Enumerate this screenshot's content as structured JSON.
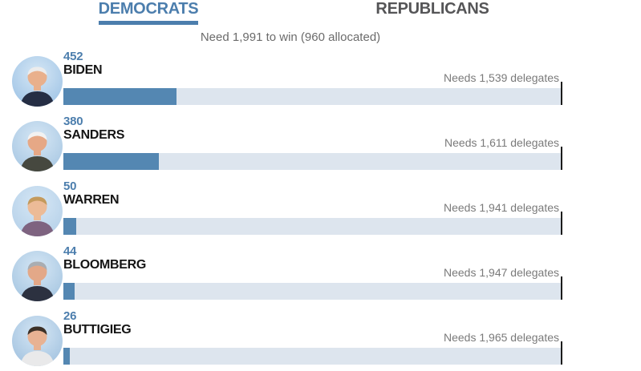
{
  "header": {
    "tabs": [
      {
        "label": "DEMOCRATS",
        "active": true
      },
      {
        "label": "REPUBLICANS",
        "active": false
      }
    ],
    "subtitle": "Need 1,991 to win (960 allocated)"
  },
  "colors": {
    "accent": "#4c7ead",
    "bar_fill": "#5487b2",
    "bar_track": "#dde5ee",
    "tick": "#1c1c1c",
    "inactive_tab": "#555557",
    "needs_text": "#7a7a7a"
  },
  "chart_data": {
    "type": "bar",
    "categories": [
      "BIDEN",
      "SANDERS",
      "WARREN",
      "BLOOMBERG",
      "BUTTIGIEG"
    ],
    "values": [
      452,
      380,
      50,
      44,
      26
    ],
    "needs": [
      1539,
      1611,
      1941,
      1947,
      1965
    ],
    "xlim": [
      0,
      1991
    ],
    "subtitle": "Need 1,991 to win (960 allocated)",
    "threshold_to_win": 1991,
    "allocated": 960,
    "legend_position": "none",
    "grid": false
  },
  "candidates": [
    {
      "delegates": "452",
      "name": "BIDEN",
      "needs_label": "Needs 1,539 delegates",
      "avatar": {
        "icon": "biden-photo",
        "bg": "#9cc2e5",
        "hair": "#ececec",
        "skin": "#e9b08c",
        "suit": "#252e44"
      }
    },
    {
      "delegates": "380",
      "name": "SANDERS",
      "needs_label": "Needs 1,611 delegates",
      "avatar": {
        "icon": "sanders-photo",
        "bg": "#a6c6e2",
        "hair": "#f2f2f2",
        "skin": "#e6a886",
        "suit": "#46483f"
      }
    },
    {
      "delegates": "50",
      "name": "WARREN",
      "needs_label": "Needs 1,941 delegates",
      "avatar": {
        "icon": "warren-photo",
        "bg": "#b3cfe8",
        "hair": "#c49a5c",
        "skin": "#ecbb97",
        "suit": "#7e6380"
      }
    },
    {
      "delegates": "44",
      "name": "BLOOMBERG",
      "needs_label": "Needs 1,947 delegates",
      "avatar": {
        "icon": "bloomberg-photo",
        "bg": "#a3c4e0",
        "hair": "#a9adb2",
        "skin": "#e3a888",
        "suit": "#2c3140"
      }
    },
    {
      "delegates": "26",
      "name": "BUTTIGIEG",
      "needs_label": "Needs 1,965 delegates",
      "avatar": {
        "icon": "buttigieg-photo",
        "bg": "#9fc0de",
        "hair": "#3c3128",
        "skin": "#e8b293",
        "suit": "#e9e9ea"
      }
    }
  ]
}
